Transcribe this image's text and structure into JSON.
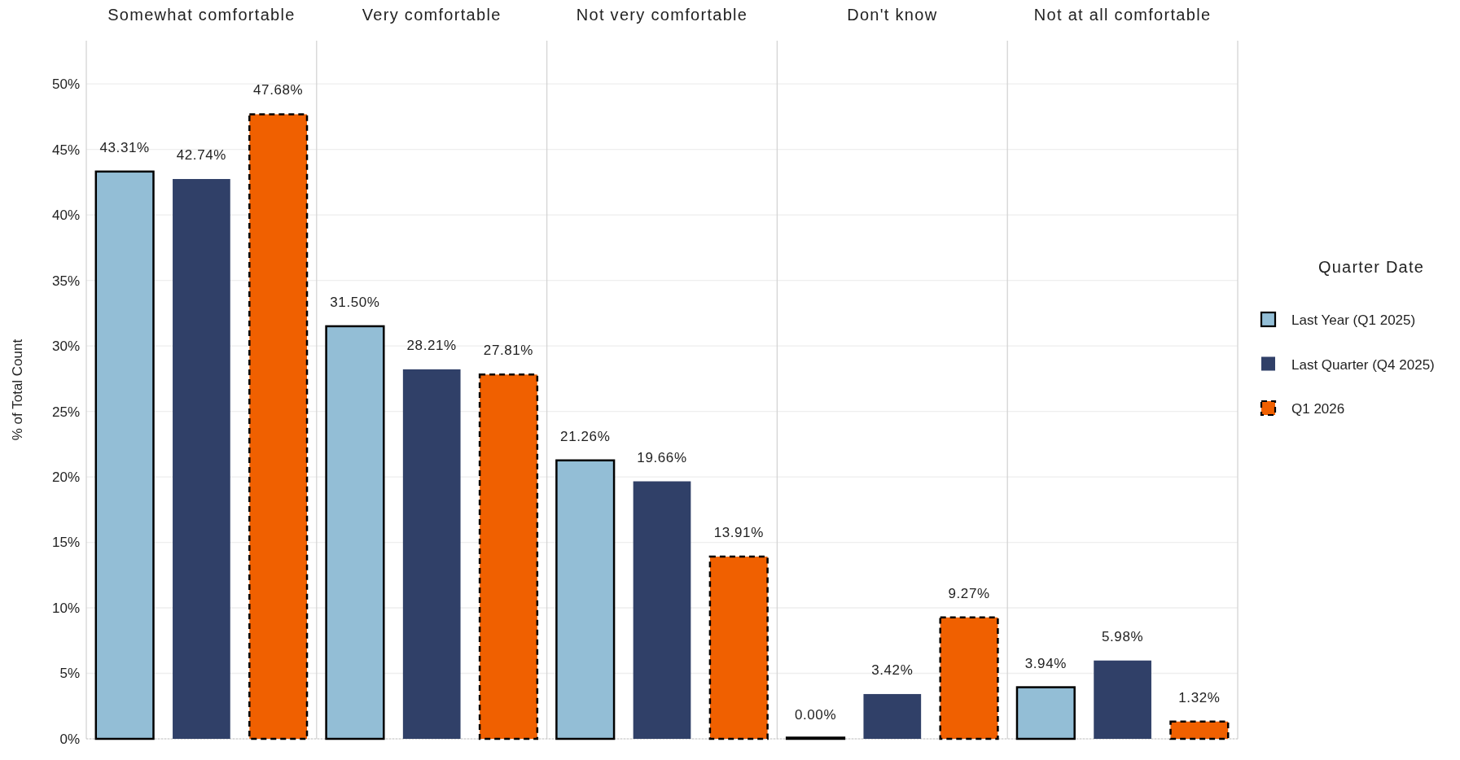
{
  "chart_data": {
    "type": "bar",
    "categories": [
      "Somewhat comfortable",
      "Very comfortable",
      "Not very comfortable",
      "Don't know",
      "Not at all comfortable"
    ],
    "series": [
      {
        "name": "Last Year (Q1 2025)",
        "color": "#93bed6",
        "line_style": "solid",
        "values": [
          43.31,
          31.5,
          21.26,
          0.0,
          3.94
        ],
        "value_labels": [
          "43.31%",
          "31.50%",
          "21.26%",
          "0.00%",
          "3.94%"
        ]
      },
      {
        "name": "Last Quarter (Q4 2025)",
        "color": "#304068",
        "values": [
          42.74,
          28.21,
          19.66,
          3.42,
          5.98
        ],
        "value_labels": [
          "42.74%",
          "28.21%",
          "19.66%",
          "3.42%",
          "5.98%"
        ]
      },
      {
        "name": "Q1 2026",
        "color": "#f06000",
        "line_style": "dashed",
        "values": [
          47.68,
          27.81,
          13.91,
          9.27,
          1.32
        ],
        "value_labels": [
          "47.68%",
          "27.81%",
          "13.91%",
          "9.27%",
          "1.32%"
        ]
      }
    ],
    "ylabel": "% of Total Count",
    "legend_title": "Quarter Date",
    "legend": "right",
    "grid": "y",
    "ylim": [
      0,
      53.3
    ],
    "yticks": [
      {
        "value": 0,
        "label": "0%"
      },
      {
        "value": 5,
        "label": "5%"
      },
      {
        "value": 10,
        "label": "10%"
      },
      {
        "value": 15,
        "label": "15%"
      },
      {
        "value": 20,
        "label": "20%"
      },
      {
        "value": 25,
        "label": "25%"
      },
      {
        "value": 30,
        "label": "30%"
      },
      {
        "value": 35,
        "label": "35%"
      },
      {
        "value": 40,
        "label": "40%"
      },
      {
        "value": 45,
        "label": "45%"
      },
      {
        "value": 50,
        "label": "50%"
      }
    ]
  }
}
